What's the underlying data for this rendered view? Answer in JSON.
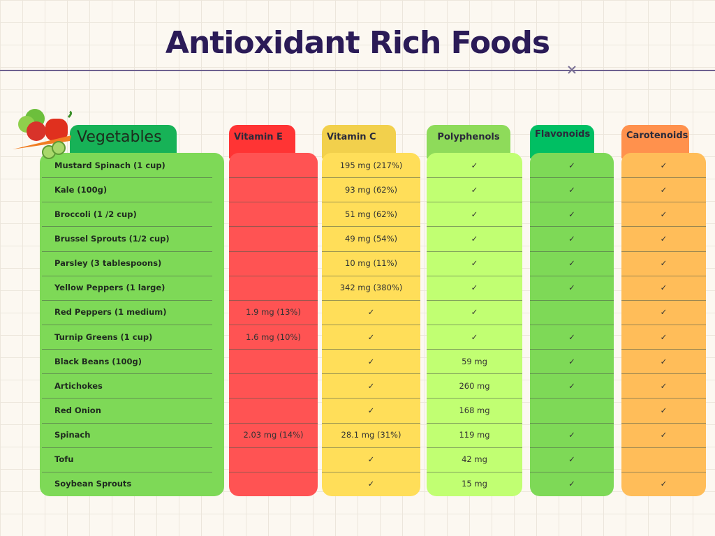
{
  "title": "Antioxidant Rich Foods",
  "table": {
    "header": "Vegetables",
    "columns": [
      "Vitamin E",
      "Vitamin C",
      "Polyphenols",
      "Flavonoids",
      "Carotenoids"
    ],
    "rows": [
      {
        "food": "Mustard Spinach (1 cup)",
        "cells": [
          null,
          "195 mg (217%)",
          "✓",
          "✓",
          "✓"
        ]
      },
      {
        "food": "Kale (100g)",
        "cells": [
          null,
          "93 mg (62%)",
          "✓",
          "✓",
          "✓"
        ]
      },
      {
        "food": "Broccoli (1 /2 cup)",
        "cells": [
          null,
          "51 mg (62%)",
          "✓",
          "✓",
          "✓"
        ]
      },
      {
        "food": "Brussel Sprouts (1/2 cup)",
        "cells": [
          null,
          "49 mg (54%)",
          "✓",
          "✓",
          "✓"
        ]
      },
      {
        "food": "Parsley (3 tablespoons)",
        "cells": [
          null,
          "10 mg (11%)",
          "✓",
          "✓",
          "✓"
        ]
      },
      {
        "food": "Yellow Peppers (1 large)",
        "cells": [
          null,
          "342 mg (380%)",
          "✓",
          "✓",
          "✓"
        ]
      },
      {
        "food": "Red Peppers (1 medium)",
        "cells": [
          "1.9 mg (13%)",
          "✓",
          "✓",
          null,
          "✓"
        ]
      },
      {
        "food": "Turnip Greens (1 cup)",
        "cells": [
          "1.6 mg (10%)",
          "✓",
          "✓",
          "✓",
          "✓"
        ]
      },
      {
        "food": "Black Beans (100g)",
        "cells": [
          null,
          "✓",
          "59 mg",
          "✓",
          "✓"
        ]
      },
      {
        "food": "Artichokes",
        "cells": [
          null,
          "✓",
          "260 mg",
          "✓",
          "✓"
        ]
      },
      {
        "food": "Red Onion",
        "cells": [
          null,
          "✓",
          "168 mg",
          null,
          "✓"
        ]
      },
      {
        "food": "Spinach",
        "cells": [
          "2.03 mg (14%)",
          "28.1 mg (31%)",
          "119 mg",
          "✓",
          "✓"
        ]
      },
      {
        "food": "Tofu",
        "cells": [
          null,
          "✓",
          "42 mg",
          "✓",
          null
        ]
      },
      {
        "food": "Soybean Sprouts",
        "cells": [
          null,
          "✓",
          "15 mg",
          "✓",
          "✓"
        ]
      }
    ]
  }
}
